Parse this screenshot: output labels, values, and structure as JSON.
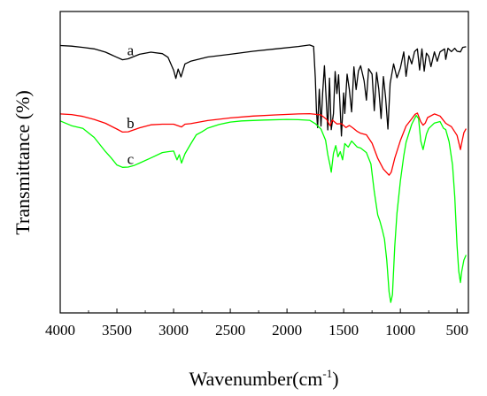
{
  "chart_data": {
    "type": "line",
    "xlabel": "Wavenumber(cm",
    "xlabel_sup": "-1",
    "xlabel_suffix": ")",
    "ylabel": "Transmittance (%)",
    "xlim": [
      4000,
      400
    ],
    "x_reversed": true,
    "ylim": [
      0,
      100
    ],
    "y_ticks_labeled": false,
    "grid": false,
    "legend": "none",
    "x_ticks": [
      4000,
      3500,
      3000,
      2500,
      2000,
      1500,
      1000,
      500
    ],
    "series": [
      {
        "name": "a",
        "color": "#000000",
        "label_at": 3380,
        "points": [
          [
            4000,
            88.7
          ],
          [
            3900,
            88.5
          ],
          [
            3800,
            88.1
          ],
          [
            3700,
            87.6
          ],
          [
            3600,
            86.5
          ],
          [
            3500,
            84.8
          ],
          [
            3450,
            84.0
          ],
          [
            3400,
            84.3
          ],
          [
            3300,
            85.8
          ],
          [
            3200,
            86.5
          ],
          [
            3100,
            86.0
          ],
          [
            3050,
            84.8
          ],
          [
            3000,
            80.5
          ],
          [
            2980,
            77.8
          ],
          [
            2960,
            80.9
          ],
          [
            2935,
            78.3
          ],
          [
            2900,
            82.6
          ],
          [
            2850,
            83.5
          ],
          [
            2700,
            84.9
          ],
          [
            2500,
            85.8
          ],
          [
            2300,
            86.8
          ],
          [
            2100,
            87.6
          ],
          [
            1900,
            88.4
          ],
          [
            1800,
            88.9
          ],
          [
            1765,
            88.4
          ],
          [
            1750,
            78.0
          ],
          [
            1740,
            67.0
          ],
          [
            1730,
            61.5
          ],
          [
            1715,
            74.2
          ],
          [
            1700,
            62.0
          ],
          [
            1685,
            73.0
          ],
          [
            1670,
            82.0
          ],
          [
            1655,
            71.4
          ],
          [
            1640,
            60.7
          ],
          [
            1625,
            77.9
          ],
          [
            1610,
            60.8
          ],
          [
            1590,
            66.1
          ],
          [
            1575,
            80.1
          ],
          [
            1560,
            72.8
          ],
          [
            1545,
            79.0
          ],
          [
            1520,
            58.7
          ],
          [
            1500,
            73.0
          ],
          [
            1490,
            66.2
          ],
          [
            1470,
            79.2
          ],
          [
            1450,
            74.2
          ],
          [
            1430,
            66.7
          ],
          [
            1410,
            81.6
          ],
          [
            1390,
            74.1
          ],
          [
            1370,
            80.3
          ],
          [
            1350,
            82.0
          ],
          [
            1320,
            77.0
          ],
          [
            1300,
            70.6
          ],
          [
            1280,
            81.0
          ],
          [
            1250,
            79.2
          ],
          [
            1230,
            67.1
          ],
          [
            1210,
            79.8
          ],
          [
            1190,
            74.2
          ],
          [
            1170,
            64.5
          ],
          [
            1150,
            78.4
          ],
          [
            1130,
            71.4
          ],
          [
            1110,
            61.0
          ],
          [
            1090,
            76.1
          ],
          [
            1060,
            82.6
          ],
          [
            1030,
            78.0
          ],
          [
            1000,
            81.3
          ],
          [
            970,
            86.6
          ],
          [
            950,
            78.5
          ],
          [
            925,
            85.3
          ],
          [
            900,
            82.6
          ],
          [
            875,
            86.7
          ],
          [
            850,
            87.6
          ],
          [
            830,
            80.6
          ],
          [
            810,
            87.6
          ],
          [
            790,
            80.2
          ],
          [
            770,
            86.2
          ],
          [
            750,
            85.1
          ],
          [
            730,
            81.7
          ],
          [
            700,
            86.6
          ],
          [
            675,
            83.5
          ],
          [
            650,
            86.6
          ],
          [
            610,
            87.6
          ],
          [
            600,
            84.1
          ],
          [
            580,
            87.8
          ],
          [
            550,
            86.7
          ],
          [
            520,
            87.8
          ],
          [
            500,
            86.8
          ],
          [
            470,
            86.6
          ],
          [
            450,
            88.1
          ],
          [
            420,
            88.3
          ]
        ]
      },
      {
        "name": "b",
        "color": "#ff0000",
        "label_at": 3380,
        "points": [
          [
            4000,
            66.0
          ],
          [
            3900,
            65.8
          ],
          [
            3800,
            65.2
          ],
          [
            3700,
            64.2
          ],
          [
            3600,
            62.9
          ],
          [
            3500,
            61.0
          ],
          [
            3450,
            60.0
          ],
          [
            3400,
            60.1
          ],
          [
            3300,
            61.4
          ],
          [
            3200,
            62.4
          ],
          [
            3100,
            62.6
          ],
          [
            3000,
            62.6
          ],
          [
            2930,
            61.7
          ],
          [
            2900,
            62.6
          ],
          [
            2850,
            62.8
          ],
          [
            2700,
            63.8
          ],
          [
            2500,
            64.7
          ],
          [
            2300,
            65.3
          ],
          [
            2100,
            65.7
          ],
          [
            1900,
            66.0
          ],
          [
            1800,
            66.1
          ],
          [
            1700,
            65.7
          ],
          [
            1650,
            64.2
          ],
          [
            1620,
            62.1
          ],
          [
            1600,
            64.0
          ],
          [
            1560,
            62.7
          ],
          [
            1520,
            62.8
          ],
          [
            1480,
            61.5
          ],
          [
            1450,
            62.2
          ],
          [
            1420,
            61.4
          ],
          [
            1380,
            60.2
          ],
          [
            1350,
            59.6
          ],
          [
            1300,
            59.1
          ],
          [
            1250,
            56.3
          ],
          [
            1200,
            51.3
          ],
          [
            1150,
            47.7
          ],
          [
            1100,
            45.7
          ],
          [
            1080,
            46.7
          ],
          [
            1050,
            51.3
          ],
          [
            1000,
            57.2
          ],
          [
            950,
            62.0
          ],
          [
            900,
            64.4
          ],
          [
            870,
            65.9
          ],
          [
            850,
            66.3
          ],
          [
            820,
            63.4
          ],
          [
            800,
            62.3
          ],
          [
            780,
            63.0
          ],
          [
            760,
            64.8
          ],
          [
            700,
            66.0
          ],
          [
            650,
            65.3
          ],
          [
            600,
            62.9
          ],
          [
            550,
            61.8
          ],
          [
            500,
            58.9
          ],
          [
            470,
            54.2
          ],
          [
            460,
            56.2
          ],
          [
            440,
            59.8
          ],
          [
            420,
            61.1
          ]
        ]
      },
      {
        "name": "c",
        "color": "#00ff00",
        "label_at": 3380,
        "points": [
          [
            4000,
            63.7
          ],
          [
            3900,
            62.1
          ],
          [
            3800,
            61.2
          ],
          [
            3700,
            58.2
          ],
          [
            3600,
            53.5
          ],
          [
            3550,
            51.4
          ],
          [
            3500,
            49.1
          ],
          [
            3450,
            48.3
          ],
          [
            3400,
            48.4
          ],
          [
            3350,
            48.9
          ],
          [
            3300,
            49.7
          ],
          [
            3200,
            51.4
          ],
          [
            3100,
            53.2
          ],
          [
            3050,
            53.5
          ],
          [
            3000,
            53.7
          ],
          [
            2970,
            50.8
          ],
          [
            2950,
            52.5
          ],
          [
            2930,
            49.7
          ],
          [
            2900,
            52.8
          ],
          [
            2850,
            56.0
          ],
          [
            2800,
            59.1
          ],
          [
            2750,
            60.1
          ],
          [
            2700,
            61.3
          ],
          [
            2600,
            62.5
          ],
          [
            2500,
            63.3
          ],
          [
            2400,
            63.7
          ],
          [
            2200,
            64.0
          ],
          [
            2000,
            64.2
          ],
          [
            1900,
            64.1
          ],
          [
            1800,
            63.9
          ],
          [
            1750,
            62.8
          ],
          [
            1700,
            61.0
          ],
          [
            1660,
            57.3
          ],
          [
            1640,
            52.5
          ],
          [
            1620,
            48.9
          ],
          [
            1610,
            46.7
          ],
          [
            1590,
            52.9
          ],
          [
            1570,
            55.5
          ],
          [
            1550,
            51.8
          ],
          [
            1530,
            53.5
          ],
          [
            1510,
            50.8
          ],
          [
            1490,
            56.2
          ],
          [
            1460,
            55.0
          ],
          [
            1430,
            57.0
          ],
          [
            1380,
            55.0
          ],
          [
            1350,
            54.7
          ],
          [
            1300,
            53.2
          ],
          [
            1260,
            49.4
          ],
          [
            1230,
            40.2
          ],
          [
            1200,
            32.5
          ],
          [
            1180,
            30.4
          ],
          [
            1160,
            27.6
          ],
          [
            1140,
            24.5
          ],
          [
            1120,
            17.5
          ],
          [
            1100,
            7.0
          ],
          [
            1085,
            3.5
          ],
          [
            1070,
            6.0
          ],
          [
            1050,
            22.0
          ],
          [
            1030,
            33.0
          ],
          [
            1000,
            43.8
          ],
          [
            970,
            52.1
          ],
          [
            950,
            56.6
          ],
          [
            900,
            62.6
          ],
          [
            860,
            65.5
          ],
          [
            840,
            64.5
          ],
          [
            820,
            57.0
          ],
          [
            800,
            54.2
          ],
          [
            790,
            55.9
          ],
          [
            770,
            59.3
          ],
          [
            750,
            61.2
          ],
          [
            700,
            63.0
          ],
          [
            650,
            63.5
          ],
          [
            620,
            61.3
          ],
          [
            600,
            60.8
          ],
          [
            570,
            56.8
          ],
          [
            540,
            49.0
          ],
          [
            520,
            38.5
          ],
          [
            500,
            22.2
          ],
          [
            485,
            13.8
          ],
          [
            470,
            10.1
          ],
          [
            460,
            13.5
          ],
          [
            440,
            17.5
          ],
          [
            420,
            19.2
          ]
        ]
      }
    ]
  }
}
